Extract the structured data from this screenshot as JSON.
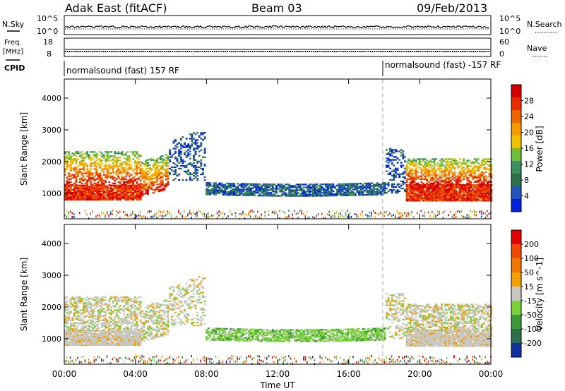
{
  "header": {
    "site": "Adak East (fitACF)",
    "beam": "Beam 03",
    "date": "09/Feb/2013"
  },
  "panels": {
    "noise": {
      "left_label": "N.Sky",
      "right_label": "N.Search",
      "tick_top": "10^5",
      "tick_bottom": "10^0"
    },
    "freq": {
      "left_label_1": "Freq.",
      "left_label_2": "[MHz]",
      "tick_top": "18",
      "tick_bottom": "8",
      "right_label": "Nave",
      "right_tick_top": "60",
      "right_tick_bottom": "0"
    },
    "cpid": {
      "left_label": "CPID",
      "seg1": "normalsound (fast) 157 RF",
      "seg2": "normalsound (fast) -157 RF"
    }
  },
  "chart_data": [
    {
      "type": "heatmap",
      "name_on_axis": "Power [dB]",
      "ylabel": "Slant Range [km]",
      "xlabel": "Time UT",
      "x_ticks": [
        "00:00",
        "04:00",
        "08:00",
        "12:00",
        "16:00",
        "20:00",
        "00:00"
      ],
      "y_ticks": [
        1000,
        2000,
        3000,
        4000
      ],
      "ylim": [
        200,
        4600
      ],
      "colorbar": {
        "label": "Power [dB]",
        "ticks": [
          4,
          8,
          12,
          16,
          20,
          24,
          28
        ],
        "colors": [
          "#0022dd",
          "#2255bb",
          "#2e6f4a",
          "#3d8f5f",
          "#6fbf3c",
          "#f2c200",
          "#f59a00",
          "#f06400",
          "#e82a00",
          "#d40000"
        ]
      }
    },
    {
      "type": "heatmap",
      "name_on_axis": "Velocity [m s^-1]",
      "ylabel": "Slant Range [km]",
      "xlabel": "Time UT",
      "x_ticks": [
        "00:00",
        "04:00",
        "08:00",
        "12:00",
        "16:00",
        "20:00",
        "00:00"
      ],
      "y_ticks": [
        1000,
        2000,
        3000,
        4000
      ],
      "ylim": [
        200,
        4600
      ],
      "colorbar": {
        "label": "Velocity [m s^-1]",
        "ticks": [
          200,
          100,
          50,
          15,
          -15,
          -50,
          -100,
          -200
        ],
        "colors": [
          "#1030a0",
          "#2d6f4a",
          "#3a9a3a",
          "#7ad23a",
          "#c8c8c0",
          "#f0a000",
          "#f07800",
          "#f04a00",
          "#e00000"
        ]
      }
    }
  ]
}
